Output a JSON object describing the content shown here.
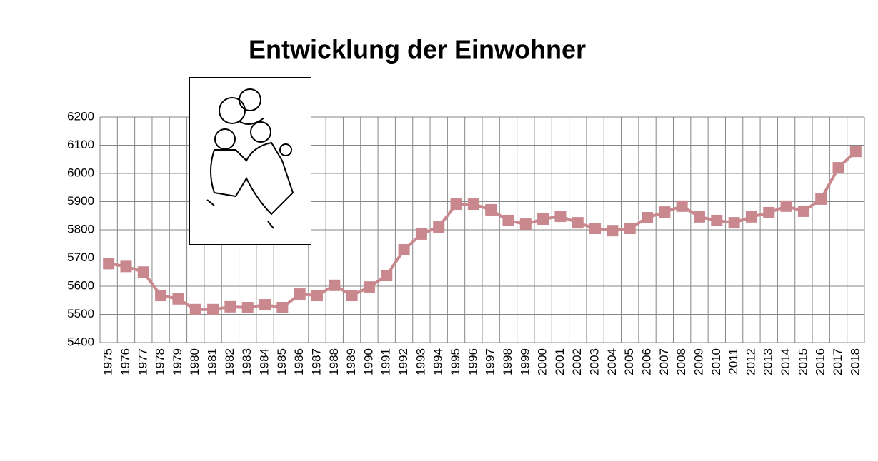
{
  "chart_data": {
    "type": "line",
    "title": "Entwicklung der Einwohner",
    "categories": [
      "1975",
      "1976",
      "1977",
      "1978",
      "1979",
      "1980",
      "1981",
      "1982",
      "1983",
      "1984",
      "1985",
      "1986",
      "1987",
      "1988",
      "1989",
      "1990",
      "1991",
      "1992",
      "1993",
      "1994",
      "1995",
      "1996",
      "1997",
      "1998",
      "1999",
      "2000",
      "2001",
      "2002",
      "2003",
      "2004",
      "2005",
      "2006",
      "2007",
      "2008",
      "2009",
      "2010",
      "2011",
      "2012",
      "2013",
      "2014",
      "2015",
      "2016",
      "2017",
      "2018"
    ],
    "values": [
      5680,
      5670,
      5650,
      5567,
      5555,
      5517,
      5517,
      5527,
      5524,
      5534,
      5524,
      5572,
      5567,
      5603,
      5567,
      5597,
      5638,
      5729,
      5785,
      5810,
      5891,
      5891,
      5871,
      5833,
      5820,
      5838,
      5848,
      5825,
      5805,
      5797,
      5805,
      5843,
      5863,
      5884,
      5846,
      5833,
      5825,
      5846,
      5861,
      5884,
      5866,
      5909,
      6020,
      6078
    ],
    "color": "#c9878e",
    "ylim": [
      5400,
      6200
    ],
    "yticks": [
      5400,
      5500,
      5600,
      5700,
      5800,
      5900,
      6000,
      6100,
      6200
    ],
    "grid": true
  }
}
